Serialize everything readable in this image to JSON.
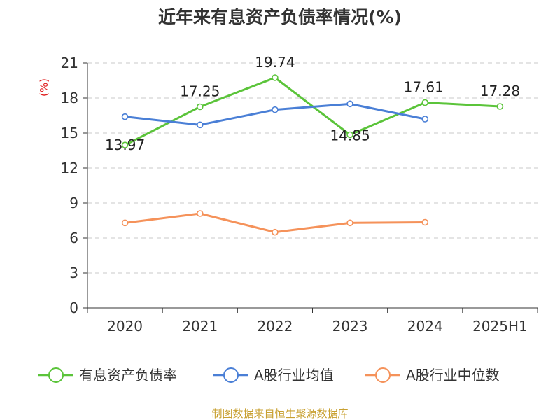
{
  "chart_data": {
    "type": "line",
    "title": "近年来有息资产负债率情况(%)",
    "ylabel": "(%)",
    "xlabel": "",
    "categories": [
      "2020",
      "2021",
      "2022",
      "2023",
      "2024",
      "2025H1"
    ],
    "ylim": [
      0,
      21
    ],
    "yticks": [
      0,
      3,
      6,
      9,
      12,
      15,
      18,
      21
    ],
    "grid": true,
    "legend_position": "bottom",
    "series": [
      {
        "name": "有息资产负债率",
        "color": "#5bc43a",
        "values": [
          13.97,
          17.25,
          19.74,
          14.85,
          17.61,
          17.28
        ],
        "labels": [
          "13.97",
          "17.25",
          "19.74",
          "14.85",
          "17.61",
          "17.28"
        ]
      },
      {
        "name": "A股行业均值",
        "color": "#4a7fd6",
        "values": [
          16.4,
          15.7,
          17.0,
          17.5,
          16.2,
          null
        ]
      },
      {
        "name": "A股行业中位数",
        "color": "#f5925a",
        "values": [
          7.3,
          8.1,
          6.5,
          7.3,
          7.35,
          null
        ]
      }
    ],
    "source": "制图数据来自恒生聚源数据库"
  }
}
